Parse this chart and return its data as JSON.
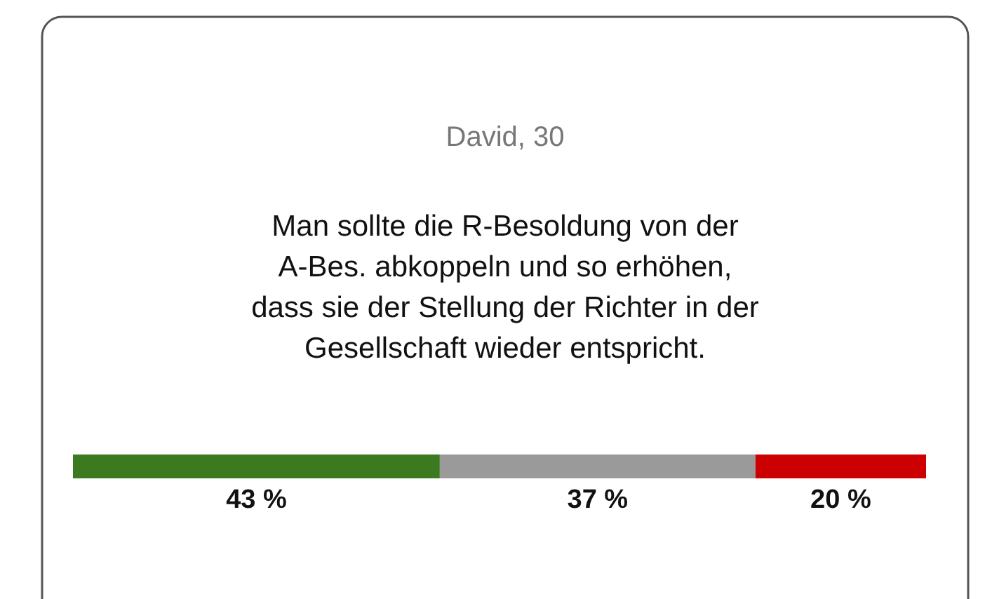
{
  "chart_data": {
    "type": "bar",
    "orientation": "horizontal",
    "stacked": true,
    "title": "David, 30",
    "subtitle": "Man sollte die R-Besoldung von der A-Bes. abkoppeln und so erhöhen, dass sie der Stellung der Richter in der Gesellschaft wieder entspricht.",
    "categories": [
      null
    ],
    "series": [
      {
        "color": "#3b7a1f",
        "values": [
          43
        ],
        "value_labels": [
          "43 %"
        ]
      },
      {
        "color": "#9a9a9a",
        "values": [
          37
        ],
        "value_labels": [
          "37 %"
        ]
      },
      {
        "color": "#cc0000",
        "values": [
          20
        ],
        "value_labels": [
          "20 %"
        ]
      }
    ]
  }
}
